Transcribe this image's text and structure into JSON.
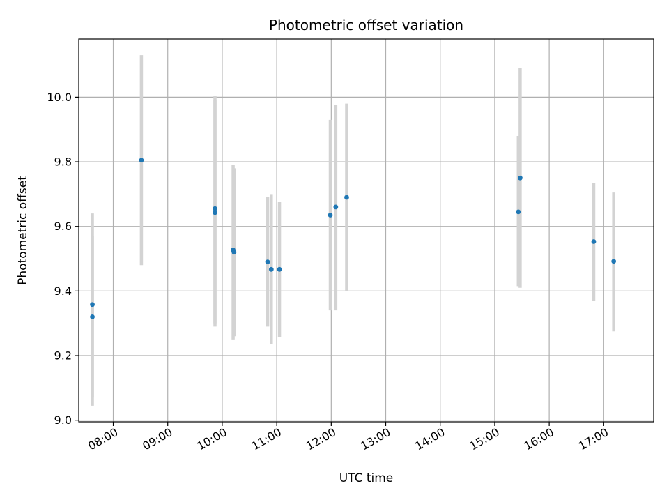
{
  "chart_data": {
    "type": "scatter",
    "title": "Photometric offset variation",
    "xlabel": "UTC time",
    "ylabel": "Photometric offset",
    "x_axis_type": "time",
    "xlim": [
      "07:22",
      "17:55"
    ],
    "ylim": [
      8.995,
      10.18
    ],
    "grid": true,
    "x_ticks": [
      "08:00",
      "09:00",
      "10:00",
      "11:00",
      "12:00",
      "13:00",
      "14:00",
      "15:00",
      "16:00",
      "17:00"
    ],
    "y_ticks": [
      9.0,
      9.2,
      9.4,
      9.6,
      9.8,
      10.0
    ],
    "y_tick_labels": [
      "9.0",
      "9.2",
      "9.4",
      "9.6",
      "9.8",
      "10.0"
    ],
    "point_color": "#1f77b4",
    "errorbar_color": "#d3d3d3",
    "points": [
      {
        "x": "07:37",
        "y": 9.358,
        "yerr_low": 9.045,
        "yerr_high": 9.64
      },
      {
        "x": "07:37",
        "y": 9.32,
        "yerr_low": 9.07,
        "yerr_high": 9.57
      },
      {
        "x": "08:31",
        "y": 9.805,
        "yerr_low": 9.48,
        "yerr_high": 10.13
      },
      {
        "x": "09:52",
        "y": 9.655,
        "yerr_low": 9.3,
        "yerr_high": 10.005
      },
      {
        "x": "09:52",
        "y": 9.643,
        "yerr_low": 9.29,
        "yerr_high": 9.99
      },
      {
        "x": "10:12",
        "y": 9.527,
        "yerr_low": 9.25,
        "yerr_high": 9.79
      },
      {
        "x": "10:13",
        "y": 9.52,
        "yerr_low": 9.26,
        "yerr_high": 9.78
      },
      {
        "x": "10:50",
        "y": 9.49,
        "yerr_low": 9.29,
        "yerr_high": 9.69
      },
      {
        "x": "10:54",
        "y": 9.467,
        "yerr_low": 9.235,
        "yerr_high": 9.7
      },
      {
        "x": "11:03",
        "y": 9.467,
        "yerr_low": 9.258,
        "yerr_high": 9.675
      },
      {
        "x": "11:59",
        "y": 9.635,
        "yerr_low": 9.34,
        "yerr_high": 9.93
      },
      {
        "x": "12:05",
        "y": 9.66,
        "yerr_low": 9.34,
        "yerr_high": 9.975
      },
      {
        "x": "12:17",
        "y": 9.69,
        "yerr_low": 9.4,
        "yerr_high": 9.98
      },
      {
        "x": "15:26",
        "y": 9.645,
        "yerr_low": 9.415,
        "yerr_high": 9.88
      },
      {
        "x": "15:28",
        "y": 9.75,
        "yerr_low": 9.41,
        "yerr_high": 10.09
      },
      {
        "x": "16:49",
        "y": 9.553,
        "yerr_low": 9.37,
        "yerr_high": 9.735
      },
      {
        "x": "17:11",
        "y": 9.492,
        "yerr_low": 9.275,
        "yerr_high": 9.705
      }
    ]
  }
}
